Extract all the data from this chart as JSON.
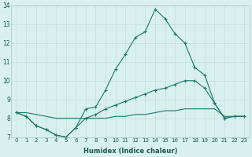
{
  "xlabel": "Humidex (Indice chaleur)",
  "x_values": [
    0,
    1,
    2,
    3,
    4,
    5,
    6,
    7,
    8,
    9,
    10,
    11,
    12,
    13,
    14,
    15,
    16,
    17,
    18,
    19,
    20,
    21,
    22,
    23
  ],
  "line1_y": [
    8.3,
    8.1,
    7.6,
    7.4,
    7.1,
    7.0,
    7.5,
    8.5,
    8.6,
    9.5,
    10.6,
    11.4,
    12.3,
    12.6,
    13.8,
    13.3,
    12.5,
    12.0,
    10.7,
    10.3,
    8.8,
    8.0,
    8.1,
    8.1
  ],
  "line2_y": [
    8.3,
    8.1,
    7.6,
    7.4,
    7.1,
    7.0,
    7.5,
    8.0,
    8.2,
    8.5,
    8.7,
    8.9,
    9.1,
    9.3,
    9.5,
    9.6,
    9.8,
    10.0,
    10.0,
    9.6,
    8.8,
    8.0,
    8.1,
    8.1
  ],
  "line3_y": [
    8.3,
    8.3,
    8.2,
    8.1,
    8.0,
    8.0,
    8.0,
    8.0,
    8.0,
    8.0,
    8.1,
    8.1,
    8.2,
    8.2,
    8.3,
    8.4,
    8.4,
    8.5,
    8.5,
    8.5,
    8.5,
    8.1,
    8.1,
    8.1
  ],
  "line_color": "#1a7a6a",
  "bg_color": "#d8f0ee",
  "grid_color": "#c8dedd",
  "ylim": [
    7.0,
    14.0
  ],
  "xlim": [
    -0.5,
    23.5
  ],
  "yticks": [
    7,
    8,
    9,
    10,
    11,
    12,
    13,
    14
  ],
  "xticks": [
    0,
    1,
    2,
    3,
    4,
    5,
    6,
    7,
    8,
    9,
    10,
    11,
    12,
    13,
    14,
    15,
    16,
    17,
    18,
    19,
    20,
    21,
    22,
    23
  ],
  "marker": "+",
  "marker_size": 3,
  "linewidth": 0.8,
  "tick_fontsize": 5.0,
  "xlabel_fontsize": 6.0
}
